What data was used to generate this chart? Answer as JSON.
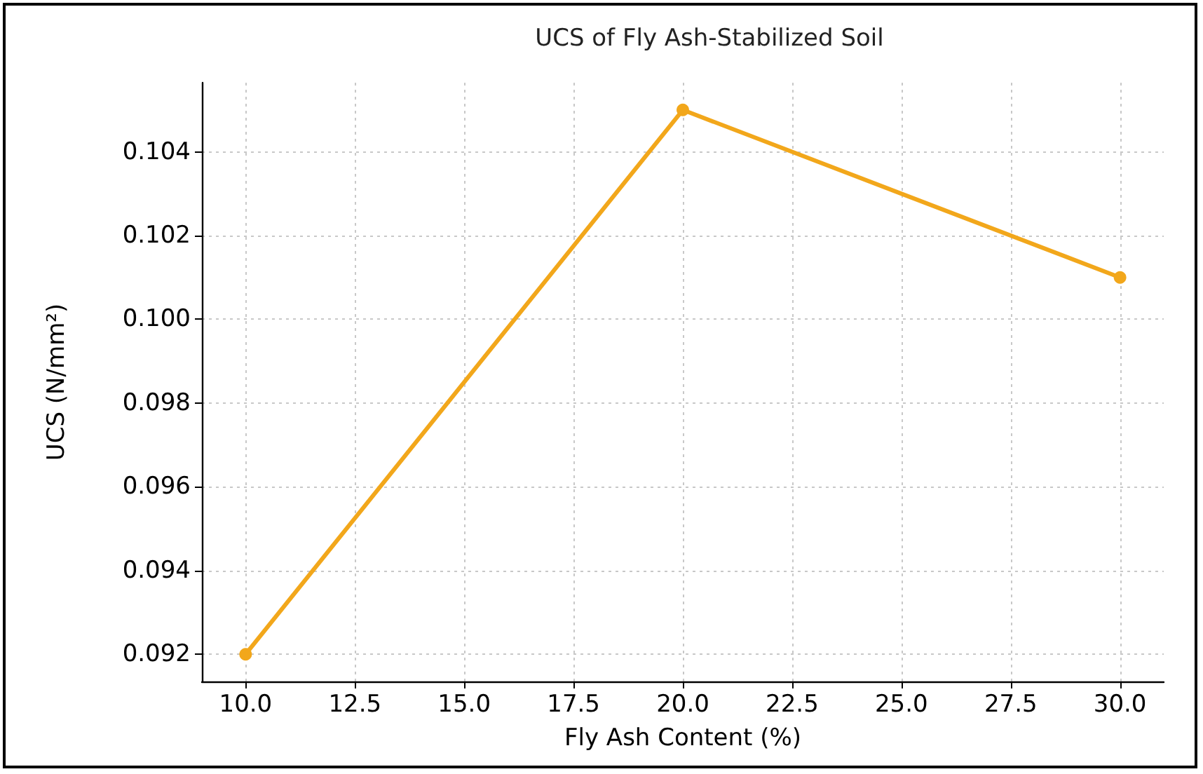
{
  "chart_data": {
    "type": "line",
    "title": "UCS of Fly Ash-Stabilized Soil",
    "xlabel": "Fly Ash Content (%)",
    "ylabel": "UCS (N/mm²)",
    "x": [
      10,
      20,
      30
    ],
    "series": [
      {
        "color": "#f2a71b",
        "values": [
          0.092,
          0.105,
          0.101
        ]
      }
    ],
    "xlim": [
      9,
      31
    ],
    "xticks": [
      {
        "value": 10,
        "label": "10.0"
      },
      {
        "value": 12.5,
        "label": "12.5"
      },
      {
        "value": 15,
        "label": "15.0"
      },
      {
        "value": 17.5,
        "label": "17.5"
      },
      {
        "value": 20,
        "label": "20.0"
      },
      {
        "value": 22.5,
        "label": "22.5"
      },
      {
        "value": 25,
        "label": "25.0"
      },
      {
        "value": 27.5,
        "label": "27.5"
      },
      {
        "value": 30,
        "label": "30.0"
      }
    ],
    "ylim": [
      0.09135,
      0.10565
    ],
    "yticks": [
      {
        "value": 0.092,
        "label": "0.092"
      },
      {
        "value": 0.094,
        "label": "0.094"
      },
      {
        "value": 0.096,
        "label": "0.096"
      },
      {
        "value": 0.098,
        "label": "0.098"
      },
      {
        "value": 0.1,
        "label": "0.100"
      },
      {
        "value": 0.102,
        "label": "0.102"
      },
      {
        "value": 0.104,
        "label": "0.104"
      }
    ],
    "grid": true,
    "marker": "circle",
    "line_style": "solid"
  }
}
